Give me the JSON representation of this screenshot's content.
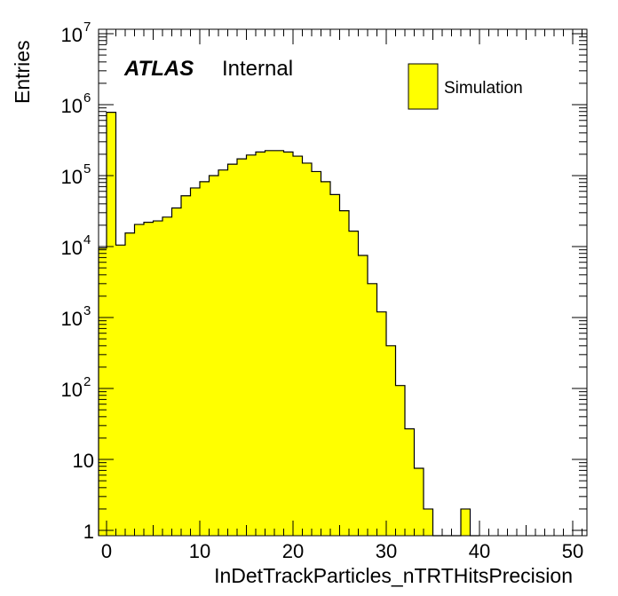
{
  "chart_data": {
    "type": "bar",
    "style": "histogram",
    "xlabel": "InDetTrackParticles_nTRTHitsPrecision",
    "ylabel": "Entries",
    "xlim": [
      -1,
      51
    ],
    "ylim": [
      0.9,
      10000000
    ],
    "yscale": "log",
    "grid": false,
    "legend_position": "top-right",
    "fill_color": "#ffff00",
    "line_color": "#000000",
    "x_ticks": [
      "0",
      "10",
      "20",
      "30",
      "40",
      "50"
    ],
    "y_ticks": [
      {
        "base": "1",
        "exp": ""
      },
      {
        "base": "10",
        "exp": ""
      },
      {
        "base": "10",
        "exp": "2"
      },
      {
        "base": "10",
        "exp": "3"
      },
      {
        "base": "10",
        "exp": "4"
      },
      {
        "base": "10",
        "exp": "5"
      },
      {
        "base": "10",
        "exp": "6"
      },
      {
        "base": "10",
        "exp": "7"
      }
    ],
    "bin_width": 1,
    "bin_starts": [
      -1,
      0,
      1,
      2,
      3,
      4,
      5,
      6,
      7,
      8,
      9,
      10,
      11,
      12,
      13,
      14,
      15,
      16,
      17,
      18,
      19,
      20,
      21,
      22,
      23,
      24,
      25,
      26,
      27,
      28,
      29,
      30,
      31,
      32,
      33,
      34,
      35,
      36,
      37,
      38,
      39
    ],
    "values": [
      9500,
      780000,
      10500,
      15500,
      20500,
      22000,
      23000,
      26000,
      35000,
      52000,
      67000,
      82000,
      100000,
      120000,
      145000,
      172000,
      195000,
      215000,
      225000,
      225000,
      215000,
      188000,
      150000,
      114000,
      82000,
      54000,
      32000,
      16500,
      7500,
      3000,
      1200,
      400,
      110,
      27,
      7.5,
      2,
      0.7,
      0.15,
      0.7,
      2,
      0.8
    ],
    "series": [
      {
        "name": "Simulation"
      }
    ],
    "annotations": {
      "atlas": "ATLAS",
      "status": "Internal"
    }
  }
}
